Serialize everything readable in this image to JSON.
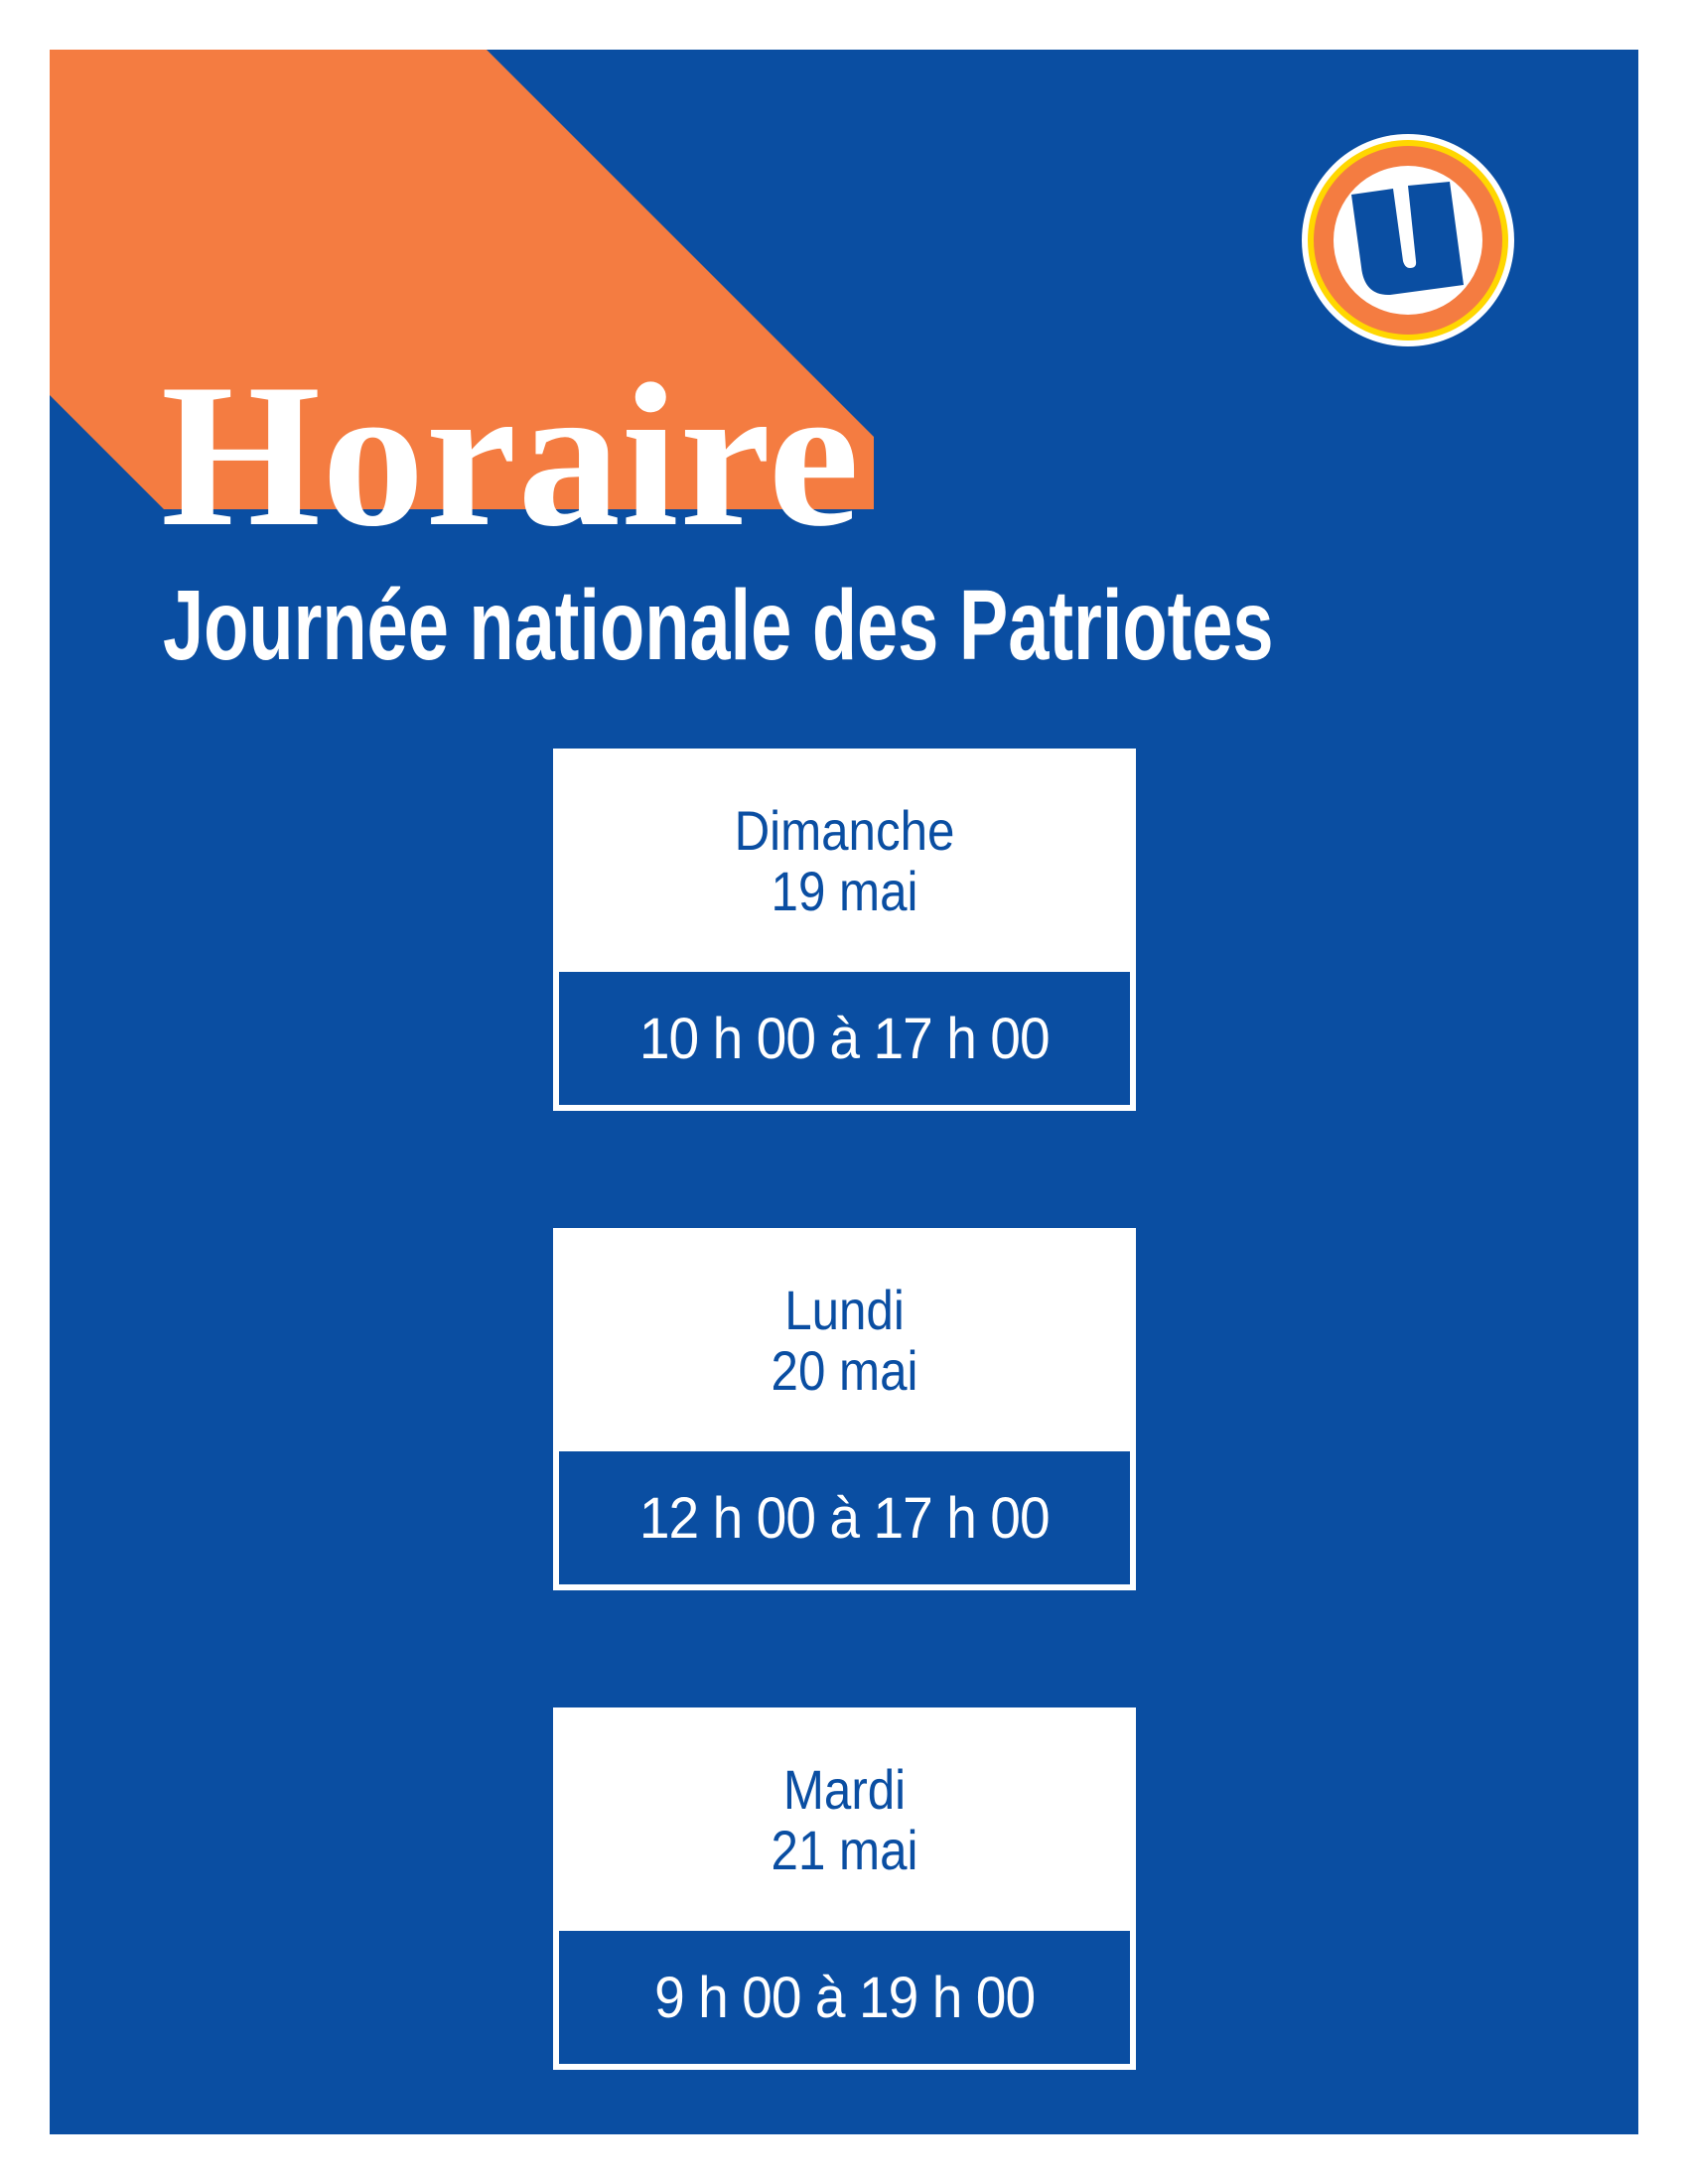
{
  "title": "Horaire",
  "subtitle": "Journée nationale des Patriotes",
  "logo": {
    "icon": "u-logo-icon",
    "colors": {
      "ring_outer": "#ffffff",
      "ring_yellow": "#ffd700",
      "ring_orange": "#f47c41",
      "letter": "#0a4ea2"
    }
  },
  "colors": {
    "background": "#0a4ea2",
    "accent": "#f47c41",
    "text": "#ffffff"
  },
  "schedule": [
    {
      "day": "Dimanche",
      "date": "19 mai",
      "hours": "10 h 00 à 17 h 00"
    },
    {
      "day": "Lundi",
      "date": "20 mai",
      "hours": "12 h 00 à 17 h 00"
    },
    {
      "day": "Mardi",
      "date": "21 mai",
      "hours": "9 h 00 à 19 h 00"
    }
  ]
}
